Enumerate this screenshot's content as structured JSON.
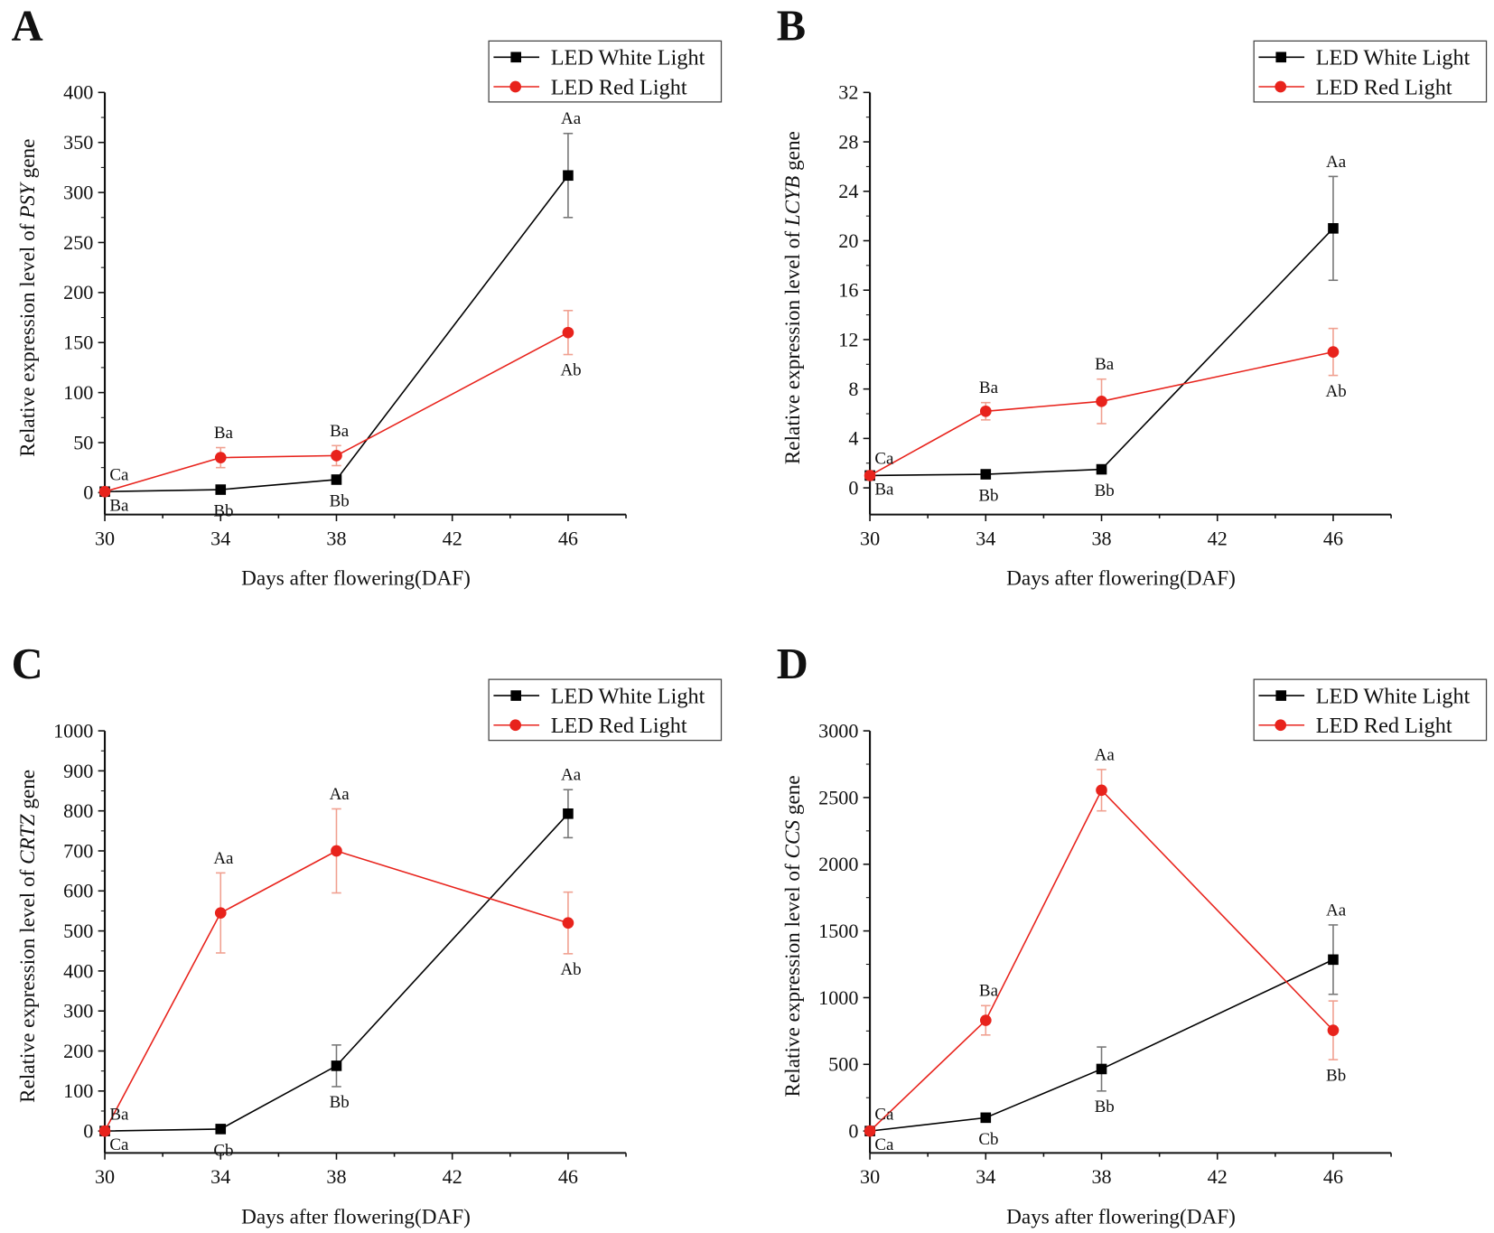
{
  "legend": {
    "white": "LED White Light",
    "red": "LED Red Light"
  },
  "colors": {
    "white": "#000000",
    "red": "#e8231c",
    "red_err": "#f0a090",
    "white_err": "#777777"
  },
  "chart_data": [
    {
      "type": "line",
      "panel": "A",
      "title": "",
      "xlabel": "Days after flowering(DAF)",
      "ylabel_prefix": "Relative expression level of ",
      "gene": "PSY",
      "ylabel_suffix": " gene",
      "x": [
        30,
        34,
        38,
        46
      ],
      "xticks": [
        30,
        34,
        38,
        42,
        46
      ],
      "xlim": [
        30,
        48
      ],
      "yticks": [
        0,
        50,
        100,
        150,
        200,
        250,
        300,
        350,
        400
      ],
      "ylim": [
        -22,
        400
      ],
      "legend_position": "top-right",
      "series": [
        {
          "name": "LED White Light",
          "key": "white",
          "values": [
            1,
            3,
            13,
            317
          ],
          "errors": [
            0,
            1,
            3,
            42
          ],
          "labels": [
            "Ba",
            "Bb",
            "Bb",
            "Aa"
          ],
          "label_pos": [
            "below",
            "below",
            "below",
            "above"
          ]
        },
        {
          "name": "LED Red Light",
          "key": "red",
          "values": [
            1,
            35,
            37,
            160
          ],
          "errors": [
            0,
            10,
            10,
            22
          ],
          "labels": [
            "Ca",
            "Ba",
            "Ba",
            "Ab"
          ],
          "label_pos": [
            "above",
            "above",
            "above",
            "below"
          ]
        }
      ]
    },
    {
      "type": "line",
      "panel": "B",
      "xlabel": "Days after flowering(DAF)",
      "ylabel_prefix": "Relative expression level of ",
      "gene": "LCYB",
      "ylabel_suffix": " gene",
      "x": [
        30,
        34,
        38,
        46
      ],
      "xticks": [
        30,
        34,
        38,
        42,
        46
      ],
      "xlim": [
        30,
        48
      ],
      "yticks": [
        0,
        4,
        8,
        12,
        16,
        20,
        24,
        28,
        32
      ],
      "ylim": [
        -2.2,
        32
      ],
      "legend_position": "top-right",
      "series": [
        {
          "name": "LED White Light",
          "key": "white",
          "values": [
            1.0,
            1.1,
            1.5,
            21.0
          ],
          "errors": [
            0,
            0.1,
            0.2,
            4.2
          ],
          "labels": [
            "Ba",
            "Bb",
            "Bb",
            "Aa"
          ],
          "label_pos": [
            "below",
            "below",
            "below",
            "above"
          ]
        },
        {
          "name": "LED Red Light",
          "key": "red",
          "values": [
            1.0,
            6.2,
            7.0,
            11.0
          ],
          "errors": [
            0.1,
            0.7,
            1.8,
            1.9
          ],
          "labels": [
            "Ca",
            "Ba",
            "Ba",
            "Ab"
          ],
          "label_pos": [
            "above",
            "above",
            "above",
            "below"
          ]
        }
      ]
    },
    {
      "type": "line",
      "panel": "C",
      "xlabel": "Days after flowering(DAF)",
      "ylabel_prefix": "Relative expression level of ",
      "gene": "CRTZ",
      "ylabel_suffix": " gene",
      "x": [
        30,
        34,
        38,
        46
      ],
      "xticks": [
        30,
        34,
        38,
        42,
        46
      ],
      "xlim": [
        30,
        48
      ],
      "yticks": [
        0,
        100,
        200,
        300,
        400,
        500,
        600,
        700,
        800,
        900,
        1000
      ],
      "ylim": [
        -55,
        1000
      ],
      "legend_position": "top-right",
      "series": [
        {
          "name": "LED White Light",
          "key": "white",
          "values": [
            0,
            5,
            163,
            793
          ],
          "errors": [
            0,
            2,
            52,
            60
          ],
          "labels": [
            "Ca",
            "Cb",
            "Bb",
            "Aa"
          ],
          "label_pos": [
            "below",
            "below",
            "below",
            "above"
          ]
        },
        {
          "name": "LED Red Light",
          "key": "red",
          "values": [
            0,
            545,
            700,
            520
          ],
          "errors": [
            0,
            100,
            105,
            77
          ],
          "labels": [
            "Ba",
            "Aa",
            "Aa",
            "Ab"
          ],
          "label_pos": [
            "above",
            "above",
            "above",
            "below"
          ]
        }
      ]
    },
    {
      "type": "line",
      "panel": "D",
      "xlabel": "Days after flowering(DAF)",
      "ylabel_prefix": "Relative expression level of ",
      "gene": "CCS",
      "ylabel_suffix": " gene",
      "x": [
        30,
        34,
        38,
        46
      ],
      "xticks": [
        30,
        34,
        38,
        42,
        46
      ],
      "xlim": [
        30,
        48
      ],
      "yticks": [
        0,
        500,
        1000,
        1500,
        2000,
        2500,
        3000
      ],
      "ylim": [
        -164,
        3000
      ],
      "legend_position": "top-right",
      "series": [
        {
          "name": "LED White Light",
          "key": "white",
          "values": [
            0,
            100,
            465,
            1285
          ],
          "errors": [
            0,
            10,
            165,
            260
          ],
          "labels": [
            "Ca",
            "Cb",
            "Bb",
            "Aa"
          ],
          "label_pos": [
            "below",
            "below",
            "below",
            "above"
          ]
        },
        {
          "name": "LED Red Light",
          "key": "red",
          "values": [
            0,
            830,
            2555,
            755
          ],
          "errors": [
            0,
            110,
            155,
            220
          ],
          "labels": [
            "Ca",
            "Ba",
            "Aa",
            "Bb"
          ],
          "label_pos": [
            "above",
            "above",
            "above",
            "below"
          ]
        }
      ]
    }
  ]
}
